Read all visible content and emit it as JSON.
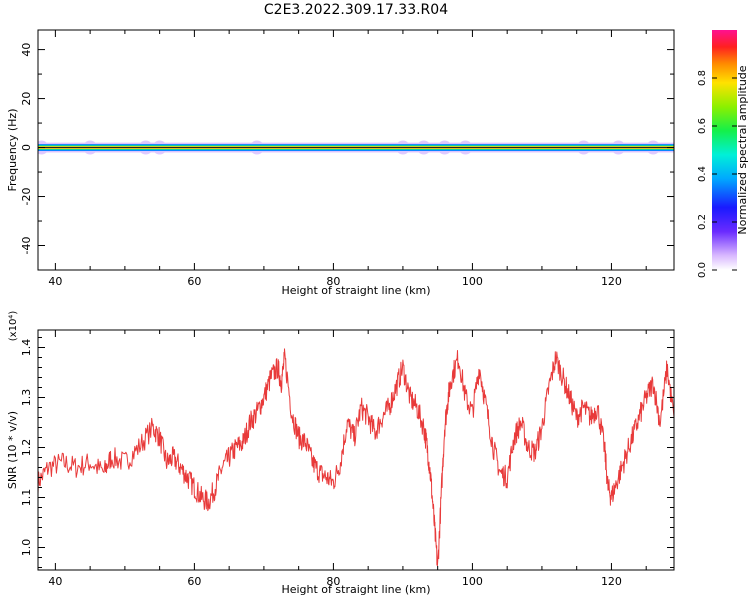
{
  "title": "C2E3.2022.309.17.33.R04",
  "colors": {
    "spectrum_line": "#cc0000",
    "snr_line": "#e83a3a",
    "axis": "#000000"
  },
  "chart_data": [
    {
      "type": "heatmap",
      "xlabel": "Height of straight line (km)",
      "ylabel": "Frequency (Hz)",
      "xlim": [
        37.5,
        129
      ],
      "ylim": [
        -50,
        48
      ],
      "xticks": [
        "40",
        "60",
        "80",
        "100",
        "120"
      ],
      "xtick_values": [
        40,
        60,
        80,
        100,
        120
      ],
      "yticks": [
        "40",
        "20",
        "0",
        "-20",
        "-40"
      ],
      "ytick_values": [
        40,
        20,
        0,
        -20,
        -40
      ],
      "colorbar": {
        "label": "Normalized spectral amplitude",
        "ticks": [
          "0.0",
          "0.2",
          "0.4",
          "0.6",
          "0.8"
        ],
        "tick_values": [
          0.0,
          0.2,
          0.4,
          0.6,
          0.8
        ],
        "range": [
          0,
          1
        ]
      },
      "bands": [
        {
          "freq_halfwidth": 2.0,
          "amplitude": 0.05
        },
        {
          "freq_halfwidth": 1.4,
          "amplitude": 0.35
        },
        {
          "freq_halfwidth": 0.9,
          "amplitude": 0.55
        },
        {
          "freq_halfwidth": 0.55,
          "amplitude": 0.78
        },
        {
          "freq_halfwidth": 0.25,
          "amplitude": 1.0
        }
      ],
      "faint_blobs_x": [
        38,
        45,
        53,
        55,
        69,
        90,
        93,
        96,
        99,
        116,
        121,
        126
      ]
    },
    {
      "type": "line",
      "xlabel": "Height of straight line (km)",
      "ylabel": "SNR (10 * v/v)",
      "scale_label": "(x10⁴)",
      "xlim": [
        37.5,
        129
      ],
      "ylim": [
        0.955,
        1.435
      ],
      "xticks": [
        "40",
        "60",
        "80",
        "100",
        "120"
      ],
      "xtick_values": [
        40,
        60,
        80,
        100,
        120
      ],
      "yticks": [
        "1.0",
        "1.1",
        "1.2",
        "1.3",
        "1.4"
      ],
      "ytick_values": [
        1.0,
        1.1,
        1.2,
        1.3,
        1.4
      ],
      "x": [
        37.5,
        39,
        41,
        43,
        45,
        47,
        48,
        50,
        52,
        54,
        55,
        56,
        57,
        58,
        59,
        60,
        61,
        62,
        63,
        64,
        65,
        66,
        67,
        68,
        69,
        70,
        71,
        72,
        72.5,
        73,
        74,
        75,
        76,
        77,
        78,
        79,
        80,
        81,
        82,
        83,
        84,
        85,
        86,
        87,
        88,
        89,
        90,
        91,
        92,
        93,
        93.5,
        94,
        94.5,
        95,
        95.5,
        96,
        96.5,
        97,
        98,
        99,
        100,
        101,
        102,
        103,
        104,
        105,
        106,
        107,
        108,
        109,
        110,
        111,
        112,
        113,
        114,
        115,
        116,
        117,
        118,
        119,
        119.5,
        120,
        121,
        122,
        123,
        124,
        125,
        126,
        127,
        128,
        129
      ],
      "y": [
        1.13,
        1.16,
        1.17,
        1.16,
        1.17,
        1.15,
        1.18,
        1.17,
        1.2,
        1.24,
        1.22,
        1.17,
        1.18,
        1.16,
        1.14,
        1.12,
        1.1,
        1.09,
        1.12,
        1.16,
        1.18,
        1.2,
        1.21,
        1.25,
        1.27,
        1.3,
        1.34,
        1.36,
        1.33,
        1.38,
        1.27,
        1.22,
        1.21,
        1.17,
        1.15,
        1.14,
        1.13,
        1.17,
        1.25,
        1.22,
        1.28,
        1.26,
        1.23,
        1.26,
        1.28,
        1.32,
        1.36,
        1.3,
        1.28,
        1.24,
        1.2,
        1.14,
        1.05,
        0.96,
        1.1,
        1.24,
        1.3,
        1.34,
        1.38,
        1.3,
        1.27,
        1.36,
        1.28,
        1.2,
        1.15,
        1.14,
        1.22,
        1.25,
        1.2,
        1.19,
        1.24,
        1.32,
        1.38,
        1.34,
        1.3,
        1.26,
        1.28,
        1.26,
        1.28,
        1.2,
        1.12,
        1.1,
        1.14,
        1.18,
        1.22,
        1.26,
        1.3,
        1.33,
        1.25,
        1.36,
        1.26
      ]
    }
  ]
}
